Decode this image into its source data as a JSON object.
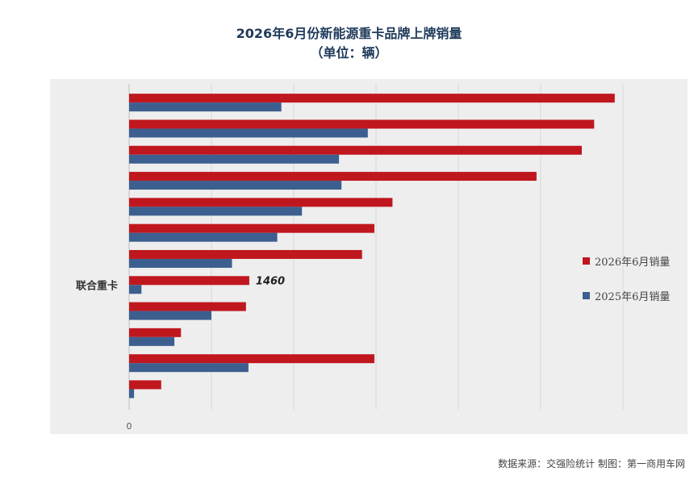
{
  "chart_data": {
    "type": "bar",
    "orientation": "horizontal",
    "title": "2026年6月份新能源重卡品牌上牌销量",
    "subtitle": "（单位：辆）",
    "categories": [
      "",
      "",
      "",
      "",
      "",
      "",
      "",
      "联合重卡",
      "",
      "",
      "",
      ""
    ],
    "series": [
      {
        "name": "2026年6月销量",
        "color": "#c0171f",
        "values": [
          5900,
          5650,
          5500,
          4950,
          3200,
          2980,
          2830,
          1460,
          1420,
          630,
          2980,
          390
        ],
        "data_labels": [
          "",
          "",
          "",
          "",
          "",
          "",
          "",
          "1460",
          "",
          "",
          "",
          ""
        ]
      },
      {
        "name": "2025年6月销量",
        "color": "#3c5f8f",
        "values": [
          1850,
          2900,
          2550,
          2580,
          2100,
          1800,
          1250,
          150,
          1000,
          550,
          1450,
          60
        ]
      }
    ],
    "xlim": [
      0,
      6000
    ],
    "xticks": [
      0,
      1000,
      2000,
      3000,
      4000,
      5000,
      6000
    ],
    "xtick_labels": [
      "0",
      "",
      "",
      "",
      "",
      "",
      ""
    ],
    "grid": true,
    "legend": "right"
  },
  "footer": {
    "source": "数据来源：交强险统计  制图：第一商用车网"
  }
}
